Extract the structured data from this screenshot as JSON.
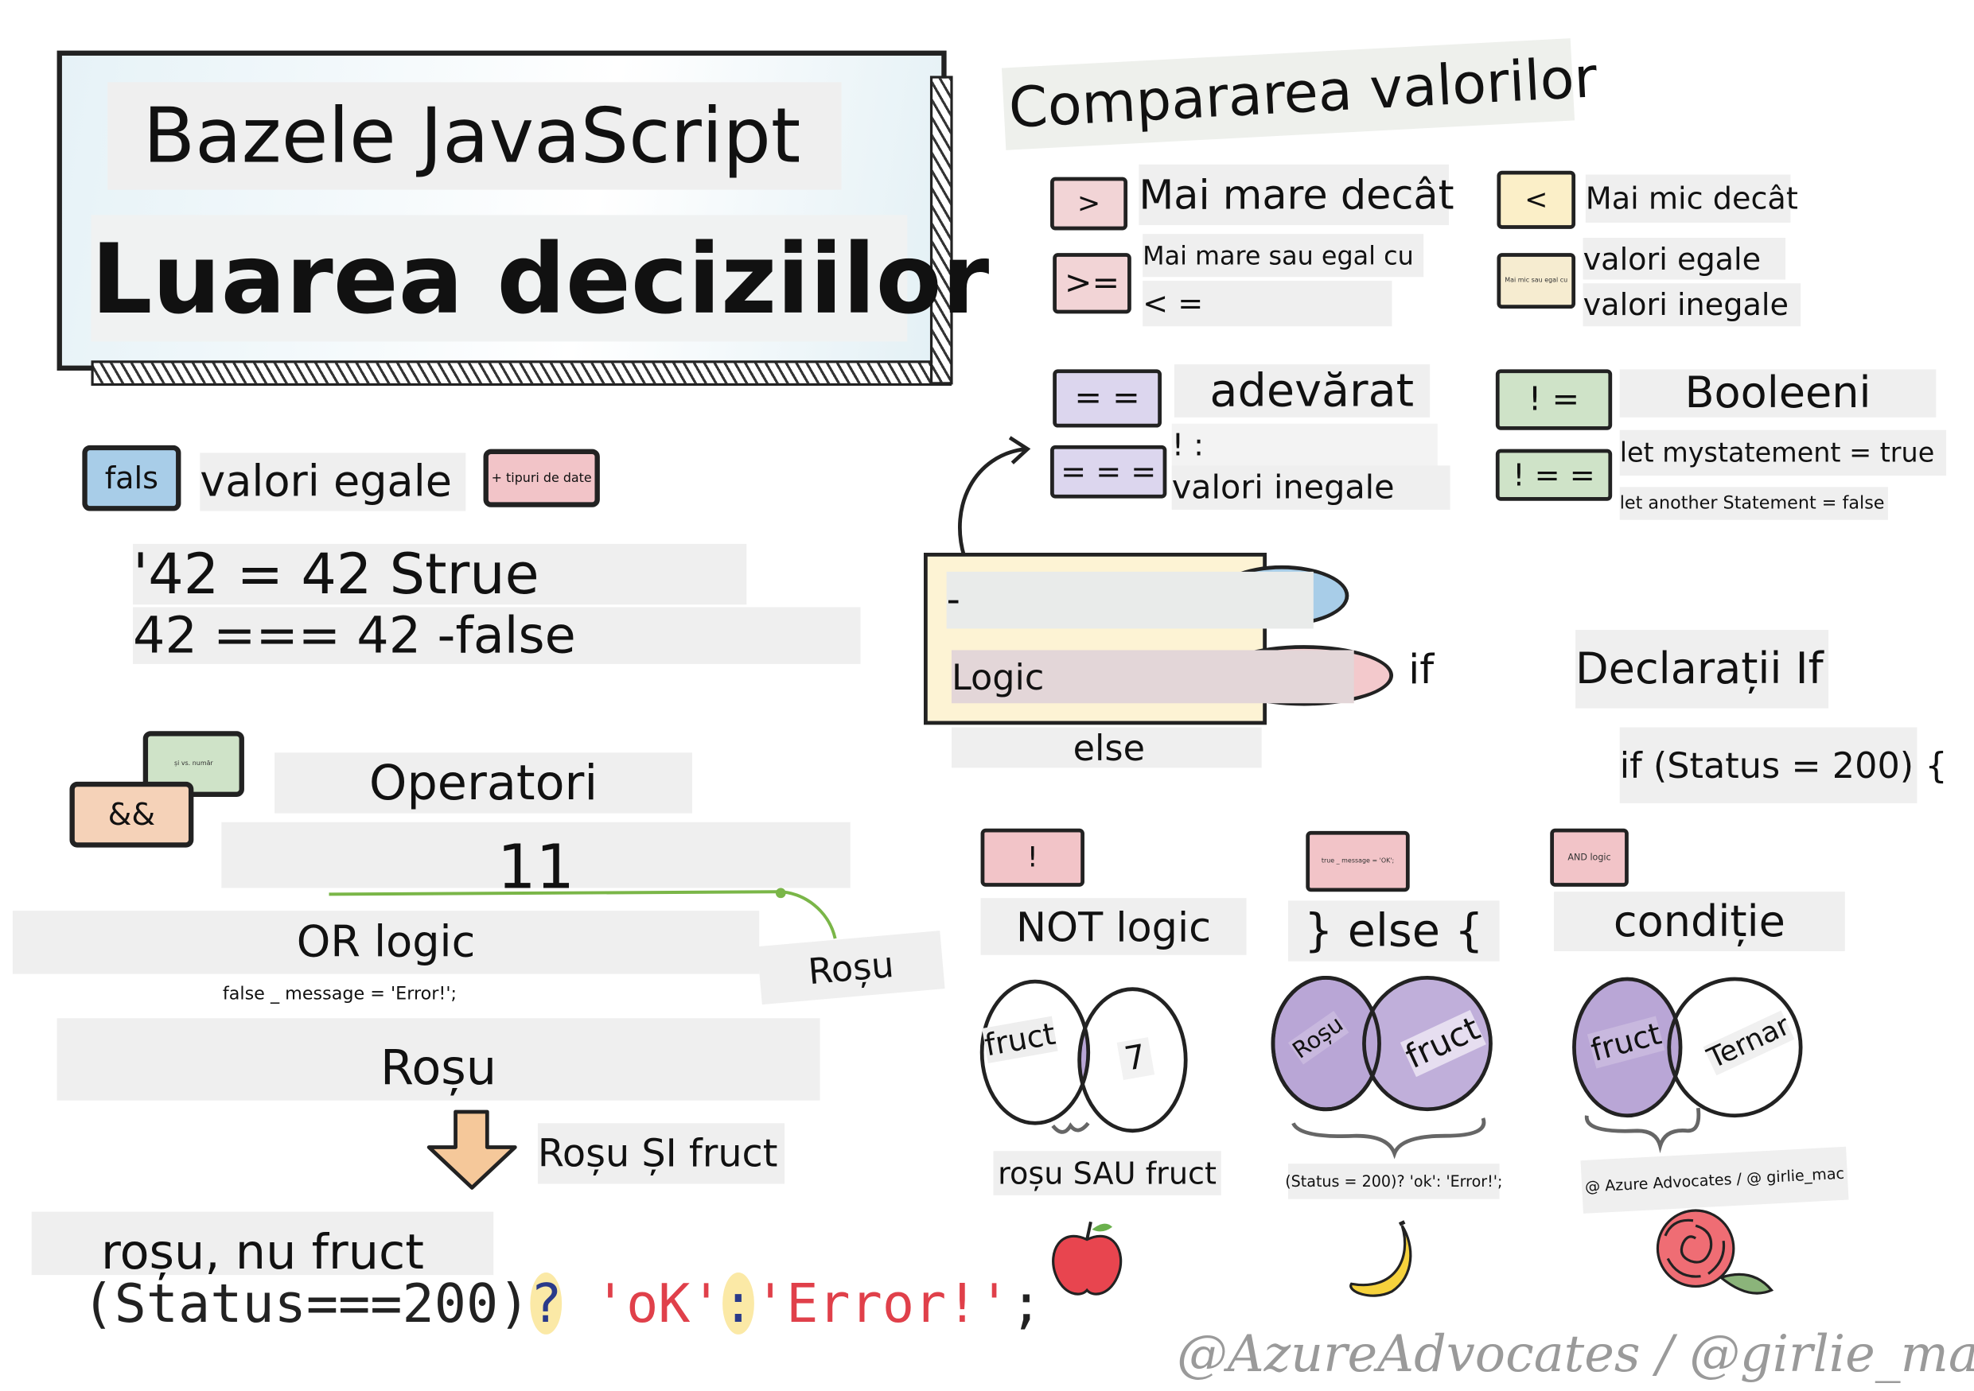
{
  "title": {
    "line1": "Bazele JavaScript",
    "line2": "Luarea deciziilor"
  },
  "comparison": {
    "heading": "Compararea valorilor",
    "gt": {
      "symbol": ">",
      "label": "Mai mare decât"
    },
    "gte": {
      "symbol": ">=",
      "label": "Mai mare sau egal cu",
      "sub": "< ="
    },
    "lt": {
      "symbol": "<",
      "label": "Mai mic decât"
    },
    "lte": {
      "box_text": "Mai mic sau egal cu",
      "label1": "valori egale",
      "label2": "valori inegale"
    },
    "eq": {
      "symbol": "= =",
      "label": "adevărat"
    },
    "strict_eq": {
      "symbol": "= = =",
      "label_top": "! :",
      "label": "valori inegale"
    },
    "neq": {
      "symbol": "! =",
      "label": "Booleeni"
    },
    "strict_neq": {
      "symbol": "! = =",
      "box_text": "Mai mic sau egal cu",
      "line1": "let mystatement = true",
      "line2": "let another Statement = false"
    }
  },
  "logic_box": {
    "dash": "-",
    "label": "Logic",
    "if": "if",
    "else": "else"
  },
  "if_statements": {
    "heading": "Declarații If",
    "code": "if (Status = 200) {"
  },
  "left": {
    "fals_bubble": "fals",
    "equal_values": "valori egale",
    "types_bubble": "+ tipuri de date",
    "example1": "'42 = 42 Strue",
    "example2": "42 === 42 -false",
    "and_bubble": "&&",
    "green_bubble": "și vs. număr",
    "operators": "Operatori",
    "or_symbol": "11",
    "or_logic": "OR logic",
    "rosu_side": "Roșu",
    "false_message": "false _ message = 'Error!';",
    "rosu": "Roșu",
    "rosu_si_fruct": "Roșu ȘI fruct",
    "rosu_nu_fruct": "roșu, nu fruct",
    "ternary": {
      "part1": "(Status===200)",
      "q": "?",
      "ok": "'oK'",
      "colon": ":",
      "err": "'Error!'",
      "semi": ";"
    }
  },
  "venns": [
    {
      "box": "!",
      "label": "NOT logic",
      "left": "fruct",
      "right": "7",
      "caption": "roșu SAU fruct",
      "fruit": "apple-icon"
    },
    {
      "box": "true _ message = 'OK';",
      "label": "} else {",
      "left": "Roșu",
      "right": "fruct",
      "caption": "(Status = 200)? 'ok': 'Error!';",
      "fruit": "banana-icon"
    },
    {
      "box": "AND logic",
      "label": "condiție",
      "left": "fruct",
      "right": "Ternar",
      "caption": "@ Azure Advocates / @ girlie_mac",
      "fruit": "rose-icon"
    }
  ],
  "signature": "@AzureAdvocates / @girlie_mac",
  "colors": {
    "lavender": "#cfc8e8",
    "venn_fill": "#b9a6d6",
    "pink": "#f2c4c8",
    "green": "#cfe3c8",
    "yellow": "#fbe9a6",
    "blue": "#a8cde8",
    "orange": "#f5c89a",
    "red_text": "#e0404a"
  }
}
